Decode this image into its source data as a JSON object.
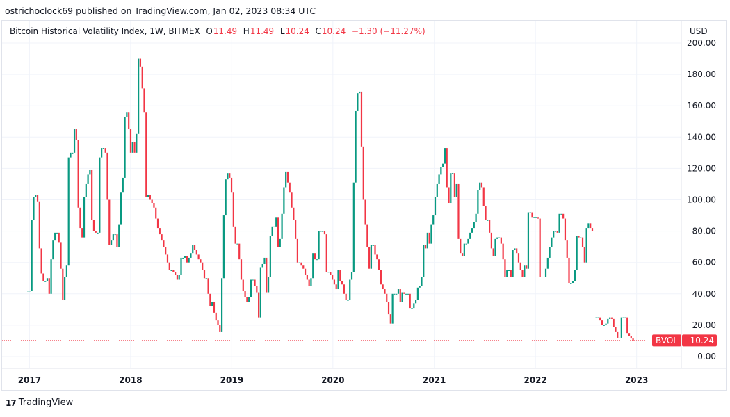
{
  "publisher_line": "ostrichoclock69 published on TradingView.com, Jan 02, 2023 08:34 UTC",
  "legend": {
    "title": "Bitcoin Historical Volatility Index, 1W, BITMEX",
    "o_label": "O",
    "o": "11.49",
    "h_label": "H",
    "h": "11.49",
    "l_label": "L",
    "l": "10.24",
    "c_label": "C",
    "c": "10.24",
    "change": "−1.30 (−11.27%)"
  },
  "currency": "USD",
  "price_tag": {
    "symbol": "BVOL",
    "value": "10.24"
  },
  "footer": {
    "logo_text": "TradingView"
  },
  "colors": {
    "up": "#089981",
    "down": "#f23645",
    "grid": "#f0f3fa"
  },
  "chart_data": {
    "type": "candlestick",
    "interval": "1W",
    "start": "2016-12-26",
    "first_open": 42,
    "ylim": [
      -8,
      200
    ],
    "y_ticks": [
      "0.00",
      "20.00",
      "40.00",
      "60.00",
      "80.00",
      "100.00",
      "120.00",
      "140.00",
      "160.00",
      "180.00",
      "200.00"
    ],
    "x_ticks": [
      "2017",
      "2018",
      "2019",
      "2020",
      "2021",
      "2022",
      "2023"
    ],
    "grid": true,
    "last_value": 10.24,
    "closes": [
      42,
      42,
      87,
      102,
      103,
      99,
      69,
      53,
      48,
      48,
      50,
      40,
      62,
      74,
      79,
      79,
      73,
      56,
      36,
      51,
      58,
      127,
      130,
      130,
      145,
      138,
      95,
      82,
      76,
      102,
      110,
      116,
      119,
      87,
      80,
      79,
      79,
      127,
      133,
      133,
      130,
      100,
      71,
      74,
      78,
      78,
      70,
      84,
      105,
      114,
      153,
      156,
      145,
      130,
      137,
      130,
      142,
      190,
      185,
      171,
      156,
      102,
      103,
      100,
      98,
      95,
      88,
      82,
      78,
      74,
      70,
      65,
      60,
      55,
      55,
      54,
      52,
      49,
      52,
      63,
      63,
      64,
      60,
      63,
      66,
      71,
      68,
      65,
      62,
      60,
      55,
      50,
      50,
      40,
      32,
      35,
      28,
      23,
      20,
      16,
      50,
      90,
      113,
      117,
      114,
      105,
      83,
      72,
      72,
      62,
      49,
      42,
      38,
      35,
      38,
      49,
      49,
      45,
      41,
      25,
      57,
      59,
      63,
      41,
      51,
      77,
      83,
      83,
      89,
      70,
      75,
      91,
      108,
      118,
      111,
      105,
      95,
      87,
      75,
      60,
      60,
      58,
      56,
      52,
      49,
      45,
      50,
      66,
      62,
      62,
      80,
      80,
      80,
      78,
      54,
      54,
      52,
      49,
      46,
      43,
      55,
      48,
      46,
      40,
      36,
      36,
      49,
      54,
      111,
      157,
      168,
      169,
      134,
      100,
      84,
      70,
      56,
      71,
      71,
      65,
      62,
      55,
      46,
      43,
      40,
      35,
      27,
      21,
      40,
      40,
      40,
      43,
      35,
      41,
      40,
      40,
      40,
      31,
      31,
      34,
      36,
      44,
      45,
      51,
      71,
      69,
      79,
      72,
      84,
      90,
      102,
      110,
      116,
      121,
      123,
      133,
      108,
      98,
      117,
      117,
      102,
      110,
      75,
      66,
      64,
      72,
      72,
      75,
      79,
      82,
      86,
      91,
      106,
      111,
      108,
      96,
      87,
      87,
      79,
      69,
      64,
      75,
      76,
      76,
      72,
      62,
      51,
      55,
      55,
      51,
      68,
      69,
      66,
      60,
      55,
      51,
      58,
      56,
      92,
      92,
      89,
      89,
      89,
      88,
      51,
      51,
      51,
      56,
      63,
      70,
      76,
      80,
      80,
      79,
      91,
      91,
      88,
      74,
      63,
      47,
      47,
      48,
      55,
      77,
      76,
      76,
      70,
      60,
      82,
      85,
      82,
      80,
      null,
      25,
      25,
      23,
      20,
      20,
      21,
      24,
      25,
      24,
      19,
      16,
      12,
      12,
      25,
      25,
      25,
      15,
      13,
      11.49,
      10.24
    ]
  }
}
